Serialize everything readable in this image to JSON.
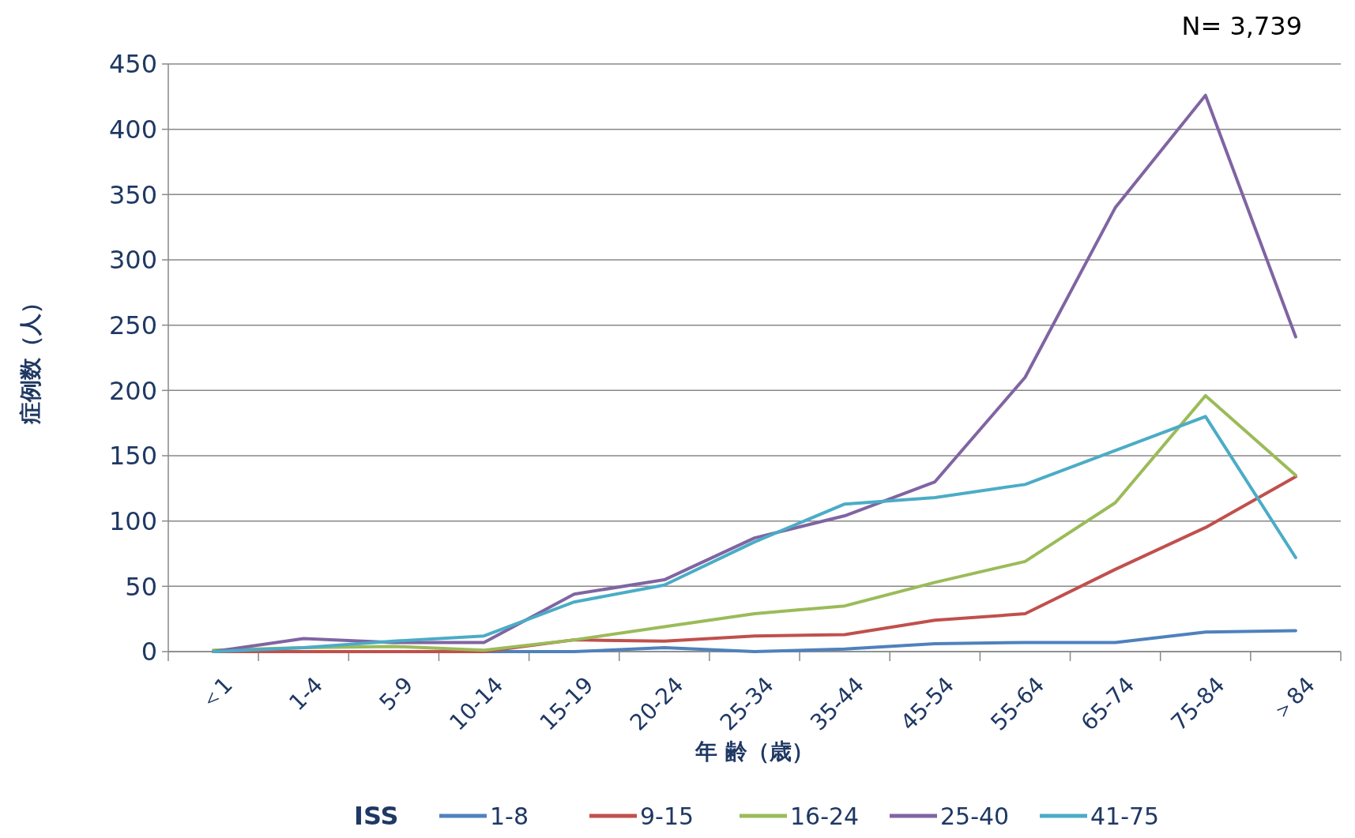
{
  "chart_data": {
    "type": "line",
    "xlabel": "年 齢（歳）",
    "ylabel": "症例数（人）",
    "legend_title": "ISS",
    "annotations": [
      "N= 3,739"
    ],
    "categories": [
      "＜1",
      "1-4",
      "5-9",
      "10-14",
      "15-19",
      "20-24",
      "25-34",
      "35-44",
      "45-54",
      "55-64",
      "65-74",
      "75-84",
      "＞84"
    ],
    "ylim": [
      0,
      450
    ],
    "yticks": [
      0,
      50,
      100,
      150,
      200,
      250,
      300,
      350,
      400,
      450
    ],
    "grid": "y",
    "legend": "bottom",
    "marker": "none",
    "line_style": "solid",
    "series": [
      {
        "name": "1-8",
        "color": "#4f81bd",
        "values": [
          0,
          0,
          0,
          0,
          0,
          3,
          0,
          2,
          6,
          7,
          7,
          15,
          16
        ]
      },
      {
        "name": "9-15",
        "color": "#c0504d",
        "values": [
          0,
          0,
          0,
          0,
          9,
          8,
          12,
          13,
          24,
          29,
          63,
          95,
          134
        ]
      },
      {
        "name": "16-24",
        "color": "#9bbb59",
        "values": [
          1,
          3,
          4,
          1,
          9,
          19,
          29,
          35,
          53,
          69,
          114,
          196,
          135
        ]
      },
      {
        "name": "25-40",
        "color": "#8064a2",
        "values": [
          0,
          10,
          7,
          7,
          44,
          55,
          87,
          104,
          130,
          210,
          340,
          426,
          241
        ]
      },
      {
        "name": "41-75",
        "color": "#4bacc6",
        "values": [
          0,
          3,
          8,
          12,
          38,
          51,
          84,
          113,
          118,
          128,
          154,
          180,
          72
        ]
      }
    ]
  }
}
